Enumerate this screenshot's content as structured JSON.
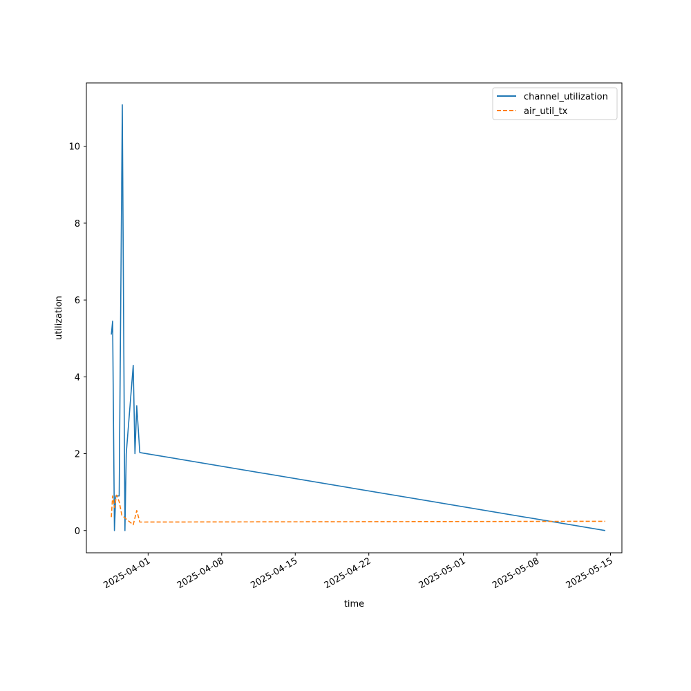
{
  "chart_data": {
    "type": "line",
    "title": "",
    "xlabel": "time",
    "ylabel": "utilization",
    "xlim": [
      "2025-03-26T03:00",
      "2025-05-16T02:00"
    ],
    "ylim": [
      -0.58,
      11.65
    ],
    "x_ticks": [
      "2025-04-01",
      "2025-04-08",
      "2025-04-15",
      "2025-04-22",
      "2025-05-01",
      "2025-05-08",
      "2025-05-15"
    ],
    "y_ticks": [
      0,
      2,
      4,
      6,
      8,
      10
    ],
    "grid": false,
    "legend": "top-right",
    "series": [
      {
        "name": "channel_utilization",
        "color": "#1f77b4",
        "style": "solid",
        "points": [
          [
            "2025-03-28T12:00",
            5.1
          ],
          [
            "2025-03-28T15:00",
            5.45
          ],
          [
            "2025-03-28T19:00",
            0.0
          ],
          [
            "2025-03-28T22:00",
            0.9
          ],
          [
            "2025-03-29T06:00",
            0.9
          ],
          [
            "2025-03-29T13:00",
            11.08
          ],
          [
            "2025-03-29T19:00",
            0.0
          ],
          [
            "2025-03-29T22:00",
            2.0
          ],
          [
            "2025-03-30T14:00",
            4.3
          ],
          [
            "2025-03-30T18:00",
            2.0
          ],
          [
            "2025-03-30T22:00",
            3.25
          ],
          [
            "2025-03-31T05:00",
            2.03
          ],
          [
            "2025-05-14T12:00",
            0.0
          ]
        ]
      },
      {
        "name": "air_util_tx",
        "color": "#ff7f0e",
        "style": "dashed",
        "points": [
          [
            "2025-03-28T12:00",
            0.35
          ],
          [
            "2025-03-28T15:00",
            0.9
          ],
          [
            "2025-03-28T19:00",
            0.6
          ],
          [
            "2025-03-29T00:00",
            0.92
          ],
          [
            "2025-03-29T06:00",
            0.75
          ],
          [
            "2025-03-29T12:00",
            0.4
          ],
          [
            "2025-03-30T00:00",
            0.28
          ],
          [
            "2025-03-30T14:00",
            0.15
          ],
          [
            "2025-03-30T22:00",
            0.52
          ],
          [
            "2025-03-31T05:00",
            0.22
          ],
          [
            "2025-05-14T12:00",
            0.24
          ]
        ]
      }
    ]
  }
}
